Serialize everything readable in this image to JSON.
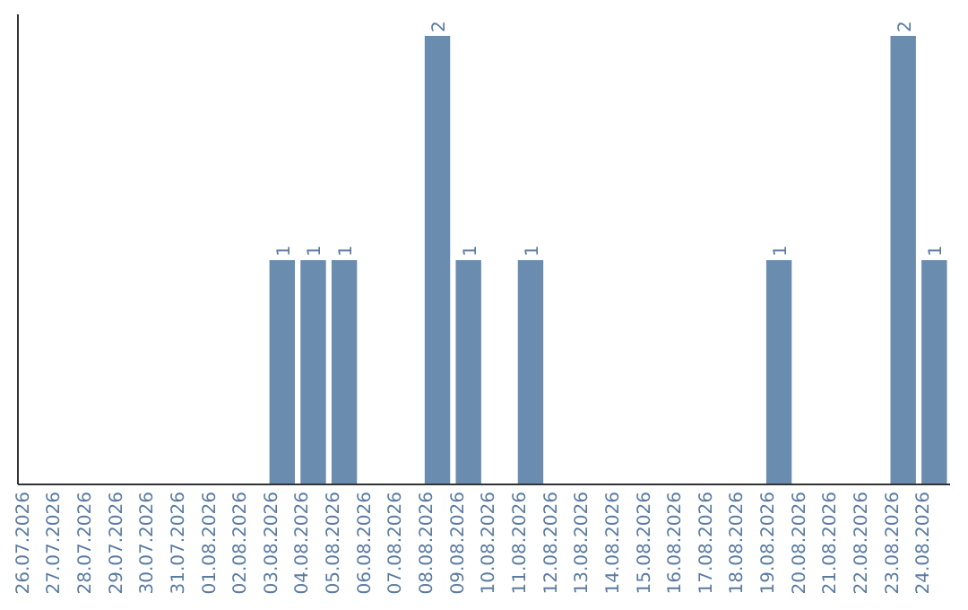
{
  "chart_data": {
    "type": "bar",
    "categories": [
      "26.07.2026",
      "27.07.2026",
      "28.07.2026",
      "29.07.2026",
      "30.07.2026",
      "31.07.2026",
      "01.08.2026",
      "02.08.2026",
      "03.08.2026",
      "04.08.2026",
      "05.08.2026",
      "06.08.2026",
      "07.08.2026",
      "08.08.2026",
      "09.08.2026",
      "10.08.2026",
      "11.08.2026",
      "12.08.2026",
      "13.08.2026",
      "14.08.2026",
      "15.08.2026",
      "16.08.2026",
      "17.08.2026",
      "18.08.2026",
      "19.08.2026",
      "20.08.2026",
      "21.08.2026",
      "22.08.2026",
      "23.08.2026",
      "24.08.2026"
    ],
    "values": [
      0,
      0,
      0,
      0,
      0,
      0,
      0,
      0,
      1,
      1,
      1,
      0,
      0,
      2,
      1,
      0,
      1,
      0,
      0,
      0,
      0,
      0,
      0,
      0,
      1,
      0,
      0,
      0,
      2,
      1
    ],
    "value_labels": [
      null,
      null,
      null,
      null,
      null,
      null,
      null,
      null,
      "1",
      "1",
      "1",
      null,
      null,
      "2",
      "1",
      null,
      "1",
      null,
      null,
      null,
      null,
      null,
      null,
      null,
      "1",
      null,
      null,
      null,
      "2",
      "1"
    ],
    "color": "#6a8caf"
  }
}
